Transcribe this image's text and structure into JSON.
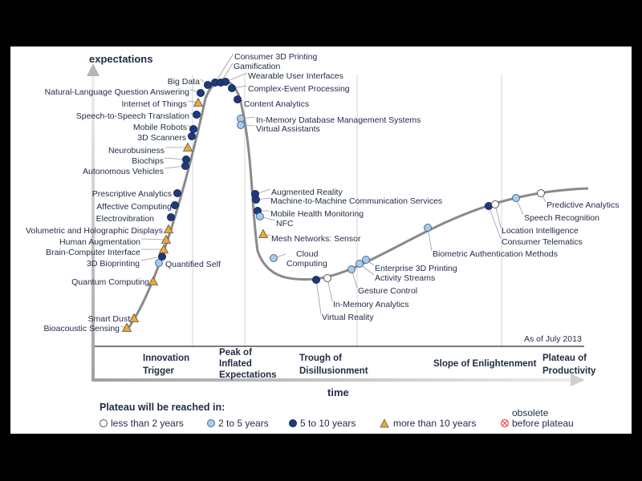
{
  "y_axis_label": "expectations",
  "x_axis_label": "time",
  "as_of": "As of July 2013",
  "phases": [
    "Innovation Trigger",
    "Peak of Inflated Expectations",
    "Trough of Disillusionment",
    "Slope of Enlightenment",
    "Plateau of Productivity"
  ],
  "legend": {
    "title": "Plateau will be reached in:",
    "items": [
      {
        "key": "lt2",
        "label": "less than 2 years"
      },
      {
        "key": "2to5",
        "label": "2 to 5 years"
      },
      {
        "key": "5to10",
        "label": "5 to 10 years"
      },
      {
        "key": "gt10",
        "label": "more than 10 years"
      },
      {
        "key": "obsolete",
        "label": "obsolete before plateau"
      }
    ]
  },
  "colors": {
    "curve": "#8a8a8a",
    "text": "#1f2a44",
    "lt2": "#ffffff",
    "2to5": "#a9cbe8",
    "5to10": "#1f3a7a",
    "gt10": "#f0a830",
    "obsolete": "#e05050",
    "axis": "#a0a0a0"
  },
  "technologies": [
    {
      "name": "Bioacoustic Sensing",
      "phase": "Innovation Trigger",
      "category": "gt10"
    },
    {
      "name": "Smart Dust",
      "phase": "Innovation Trigger",
      "category": "gt10"
    },
    {
      "name": "Quantum Computing",
      "phase": "Innovation Trigger",
      "category": "gt10"
    },
    {
      "name": "Quantified Self",
      "phase": "Innovation Trigger",
      "category": "2to5"
    },
    {
      "name": "3D Bioprinting",
      "phase": "Innovation Trigger",
      "category": "5to10"
    },
    {
      "name": "Brain-Computer Interface",
      "phase": "Innovation Trigger",
      "category": "gt10"
    },
    {
      "name": "Human Augmentation",
      "phase": "Innovation Trigger",
      "category": "gt10"
    },
    {
      "name": "Volumetric and Holographic Displays",
      "phase": "Innovation Trigger",
      "category": "gt10"
    },
    {
      "name": "Electrovibration",
      "phase": "Innovation Trigger",
      "category": "5to10"
    },
    {
      "name": "Affective Computing",
      "phase": "Innovation Trigger",
      "category": "5to10"
    },
    {
      "name": "Prescriptive Analytics",
      "phase": "Innovation Trigger",
      "category": "5to10"
    },
    {
      "name": "Autonomous Vehicles",
      "phase": "Innovation Trigger",
      "category": "5to10"
    },
    {
      "name": "Biochips",
      "phase": "Innovation Trigger",
      "category": "5to10"
    },
    {
      "name": "Neurobusiness",
      "phase": "Innovation Trigger",
      "category": "gt10"
    },
    {
      "name": "3D Scanners",
      "phase": "Peak of Inflated Expectations",
      "category": "5to10"
    },
    {
      "name": "Mobile Robots",
      "phase": "Peak of Inflated Expectations",
      "category": "5to10"
    },
    {
      "name": "Speech-to-Speech Translation",
      "phase": "Peak of Inflated Expectations",
      "category": "5to10"
    },
    {
      "name": "Internet of Things",
      "phase": "Peak of Inflated Expectations",
      "category": "gt10"
    },
    {
      "name": "Natural-Language Question Answering",
      "phase": "Peak of Inflated Expectations",
      "category": "5to10"
    },
    {
      "name": "Big Data",
      "phase": "Peak of Inflated Expectations",
      "category": "5to10"
    },
    {
      "name": "Consumer 3D Printing",
      "phase": "Peak of Inflated Expectations",
      "category": "5to10"
    },
    {
      "name": "Gamification",
      "phase": "Peak of Inflated Expectations",
      "category": "5to10"
    },
    {
      "name": "Wearable User Interfaces",
      "phase": "Peak of Inflated Expectations",
      "category": "5to10"
    },
    {
      "name": "Complex-Event Processing",
      "phase": "Peak of Inflated Expectations",
      "category": "5to10"
    },
    {
      "name": "Content Analytics",
      "phase": "Peak of Inflated Expectations",
      "category": "5to10"
    },
    {
      "name": "In-Memory Database Management Systems",
      "phase": "Peak of Inflated Expectations",
      "category": "2to5"
    },
    {
      "name": "Virtual Assistants",
      "phase": "Peak of Inflated Expectations",
      "category": "2to5"
    },
    {
      "name": "Augmented Reality",
      "phase": "Trough of Disillusionment",
      "category": "5to10"
    },
    {
      "name": "Machine-to-Machine Communication Services",
      "phase": "Trough of Disillusionment",
      "category": "5to10"
    },
    {
      "name": "Mobile Health Monitoring",
      "phase": "Trough of Disillusionment",
      "category": "5to10"
    },
    {
      "name": "NFC",
      "phase": "Trough of Disillusionment",
      "category": "2to5"
    },
    {
      "name": "Mesh Networks: Sensor",
      "phase": "Trough of Disillusionment",
      "category": "gt10"
    },
    {
      "name": "Cloud Computing",
      "phase": "Trough of Disillusionment",
      "category": "2to5"
    },
    {
      "name": "Virtual Reality",
      "phase": "Trough of Disillusionment",
      "category": "5to10"
    },
    {
      "name": "In-Memory Analytics",
      "phase": "Trough of Disillusionment",
      "category": "lt2"
    },
    {
      "name": "Gesture Control",
      "phase": "Slope of Enlightenment",
      "category": "2to5"
    },
    {
      "name": "Activity Streams",
      "phase": "Slope of Enlightenment",
      "category": "2to5"
    },
    {
      "name": "Enterprise 3D Printing",
      "phase": "Slope of Enlightenment",
      "category": "2to5"
    },
    {
      "name": "Biometric Authentication Methods",
      "phase": "Slope of Enlightenment",
      "category": "2to5"
    },
    {
      "name": "Consumer Telematics",
      "phase": "Slope of Enlightenment",
      "category": "5to10"
    },
    {
      "name": "Location Intelligence",
      "phase": "Slope of Enlightenment",
      "category": "lt2"
    },
    {
      "name": "Speech Recognition",
      "phase": "Slope of Enlightenment",
      "category": "2to5"
    },
    {
      "name": "Predictive Analytics",
      "phase": "Slope of Enlightenment",
      "category": "lt2"
    }
  ]
}
